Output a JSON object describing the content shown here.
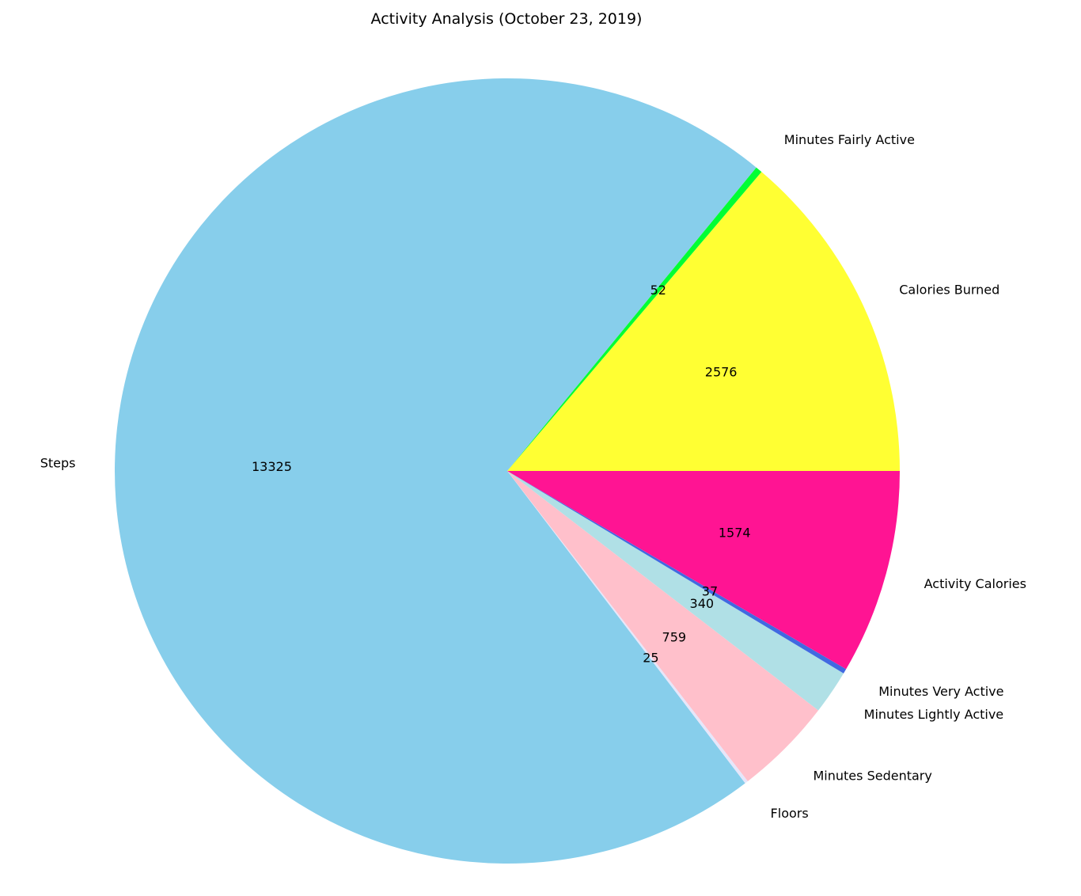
{
  "chart_data": {
    "type": "pie",
    "title": "Activity Analysis (October 23, 2019)",
    "legend": "none",
    "grid": false,
    "start_angle_deg": 0,
    "direction": "counterclockwise",
    "slices": [
      {
        "label": "Calories Burned",
        "value": 2576,
        "color": "#ffff33"
      },
      {
        "label": "Minutes Fairly Active",
        "value": 52,
        "color": "#00ff33"
      },
      {
        "label": "Steps",
        "value": 13325,
        "color": "#87ceeb"
      },
      {
        "label": "Floors",
        "value": 25,
        "color": "#e6e6fa"
      },
      {
        "label": "Minutes Sedentary",
        "value": 759,
        "color": "#ffc0cb"
      },
      {
        "label": "Minutes Lightly Active",
        "value": 340,
        "color": "#b0e0e6"
      },
      {
        "label": "Minutes Very Active",
        "value": 37,
        "color": "#4169e1"
      },
      {
        "label": "Activity Calories",
        "value": 1574,
        "color": "#ff1493"
      }
    ]
  }
}
